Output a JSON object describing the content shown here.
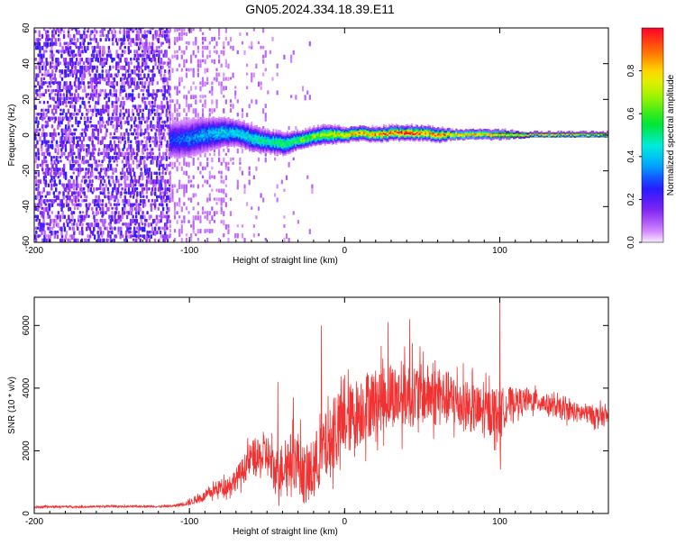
{
  "title": "GN05.2024.334.18.39.E11",
  "colorbar": {
    "label": "Normalized spectral amplitude",
    "range": [
      0,
      1
    ],
    "ticks": [
      "0.0",
      "0.2",
      "0.4",
      "0.6",
      "0.8"
    ],
    "tick_values": [
      0.0,
      0.2,
      0.4,
      0.6,
      0.8
    ],
    "colormap": "rainbow: white/magenta (0) → blue → cyan → green → yellow → red (1)"
  },
  "chart_data": [
    {
      "type": "heatmap",
      "title": "GN05.2024.334.18.39.E11",
      "xlabel": "Height of straight line (km)",
      "ylabel": "Frequency (Hz)",
      "xlim": [
        -200,
        170
      ],
      "ylim": [
        -60,
        60
      ],
      "x_ticks": [
        -200,
        -100,
        0,
        100
      ],
      "y_ticks": [
        -60,
        -40,
        -20,
        0,
        20,
        40,
        60
      ],
      "x_tick_labels": [
        "-200",
        "-100",
        "0",
        "100"
      ],
      "y_tick_labels": [
        "-60",
        "-40",
        "-20",
        "0",
        "20",
        "40",
        "60"
      ],
      "grid": false,
      "noise_region_x": [
        -200,
        -113
      ],
      "ridge": {
        "x": [
          -113,
          -100,
          -90,
          -80,
          -70,
          -60,
          -50,
          -40,
          -30,
          -20,
          -10,
          0,
          10,
          20,
          30,
          40,
          50,
          60,
          70,
          80,
          90,
          100,
          120,
          140,
          170
        ],
        "center_hz": [
          -3,
          -2,
          0,
          1,
          1,
          -2,
          -4,
          -5,
          -3,
          -1,
          0,
          0,
          1,
          0,
          1,
          1,
          1,
          0,
          0,
          0,
          0,
          0,
          0,
          0,
          0
        ],
        "halfwidth_hz": [
          9,
          9,
          8,
          7,
          6,
          6,
          5,
          5,
          4,
          4,
          4,
          3,
          3,
          3,
          3,
          3,
          3,
          3,
          2,
          2,
          2,
          2,
          1,
          1,
          1
        ],
        "peak_amplitude": [
          0.3,
          0.35,
          0.4,
          0.45,
          0.45,
          0.5,
          0.55,
          0.6,
          0.65,
          0.7,
          0.8,
          0.85,
          0.9,
          0.9,
          0.95,
          1.0,
          0.95,
          0.95,
          0.9,
          0.9,
          0.9,
          0.85,
          0.8,
          0.8,
          0.8
        ]
      }
    },
    {
      "type": "line",
      "xlabel": "Height of straight line (km)",
      "ylabel": "SNR (10 * v/v)",
      "xlim": [
        -200,
        170
      ],
      "ylim": [
        0,
        6900
      ],
      "x_ticks": [
        -200,
        -100,
        0,
        100
      ],
      "y_ticks": [
        0,
        2000,
        4000,
        6000
      ],
      "x_tick_labels": [
        "-200",
        "-100",
        "0",
        "100"
      ],
      "y_tick_labels": [
        "0",
        "2000",
        "4000",
        "6000"
      ],
      "grid": false,
      "series": [
        {
          "color": "#f03232",
          "x": [
            -200,
            -190,
            -180,
            -170,
            -160,
            -150,
            -140,
            -130,
            -120,
            -110,
            -100,
            -95,
            -90,
            -85,
            -80,
            -75,
            -70,
            -65,
            -60,
            -55,
            -50,
            -45,
            -40,
            -35,
            -30,
            -25,
            -20,
            -15,
            -10,
            -5,
            0,
            5,
            10,
            15,
            20,
            25,
            30,
            35,
            40,
            45,
            50,
            55,
            60,
            65,
            70,
            75,
            80,
            85,
            90,
            95,
            100,
            105,
            110,
            115,
            120,
            125,
            130,
            135,
            140,
            145,
            150,
            155,
            160,
            165,
            170
          ],
          "values": [
            200,
            210,
            220,
            210,
            220,
            230,
            220,
            230,
            220,
            240,
            350,
            450,
            550,
            700,
            850,
            900,
            1100,
            1400,
            1800,
            1700,
            1900,
            1300,
            1500,
            1700,
            1700,
            1100,
            1400,
            2000,
            2200,
            2600,
            2900,
            3100,
            3300,
            3500,
            3600,
            3700,
            3800,
            3700,
            3800,
            3800,
            3800,
            3800,
            3700,
            3700,
            3600,
            3500,
            3400,
            3300,
            3200,
            3300,
            3200,
            3500,
            3600,
            3600,
            3600,
            3600,
            3500,
            3400,
            3300,
            3300,
            3200,
            3200,
            3150,
            3100,
            3100
          ],
          "noise_amplitude": [
            40,
            40,
            40,
            40,
            40,
            40,
            40,
            40,
            40,
            40,
            120,
            160,
            200,
            260,
            320,
            380,
            450,
            550,
            700,
            800,
            900,
            900,
            1000,
            1100,
            1200,
            1200,
            1300,
            1400,
            1400,
            1400,
            1400,
            1400,
            1400,
            1400,
            1300,
            1300,
            1300,
            1300,
            1300,
            1300,
            1200,
            1200,
            1200,
            1100,
            1100,
            1100,
            1000,
            1000,
            1000,
            1000,
            1000,
            700,
            500,
            500,
            450,
            450,
            400,
            400,
            400,
            400,
            400,
            400,
            400,
            400,
            400
          ],
          "spikes": [
            {
              "x": -43,
              "value": 4200
            },
            {
              "x": -33,
              "value": 3700
            },
            {
              "x": -15,
              "value": 6000
            },
            {
              "x": -6,
              "value": 3700
            },
            {
              "x": 28,
              "value": 6100
            },
            {
              "x": 42,
              "value": 6200
            },
            {
              "x": 100,
              "value": 6900
            },
            {
              "x": 100.5,
              "value": 1400
            }
          ]
        }
      ]
    }
  ]
}
